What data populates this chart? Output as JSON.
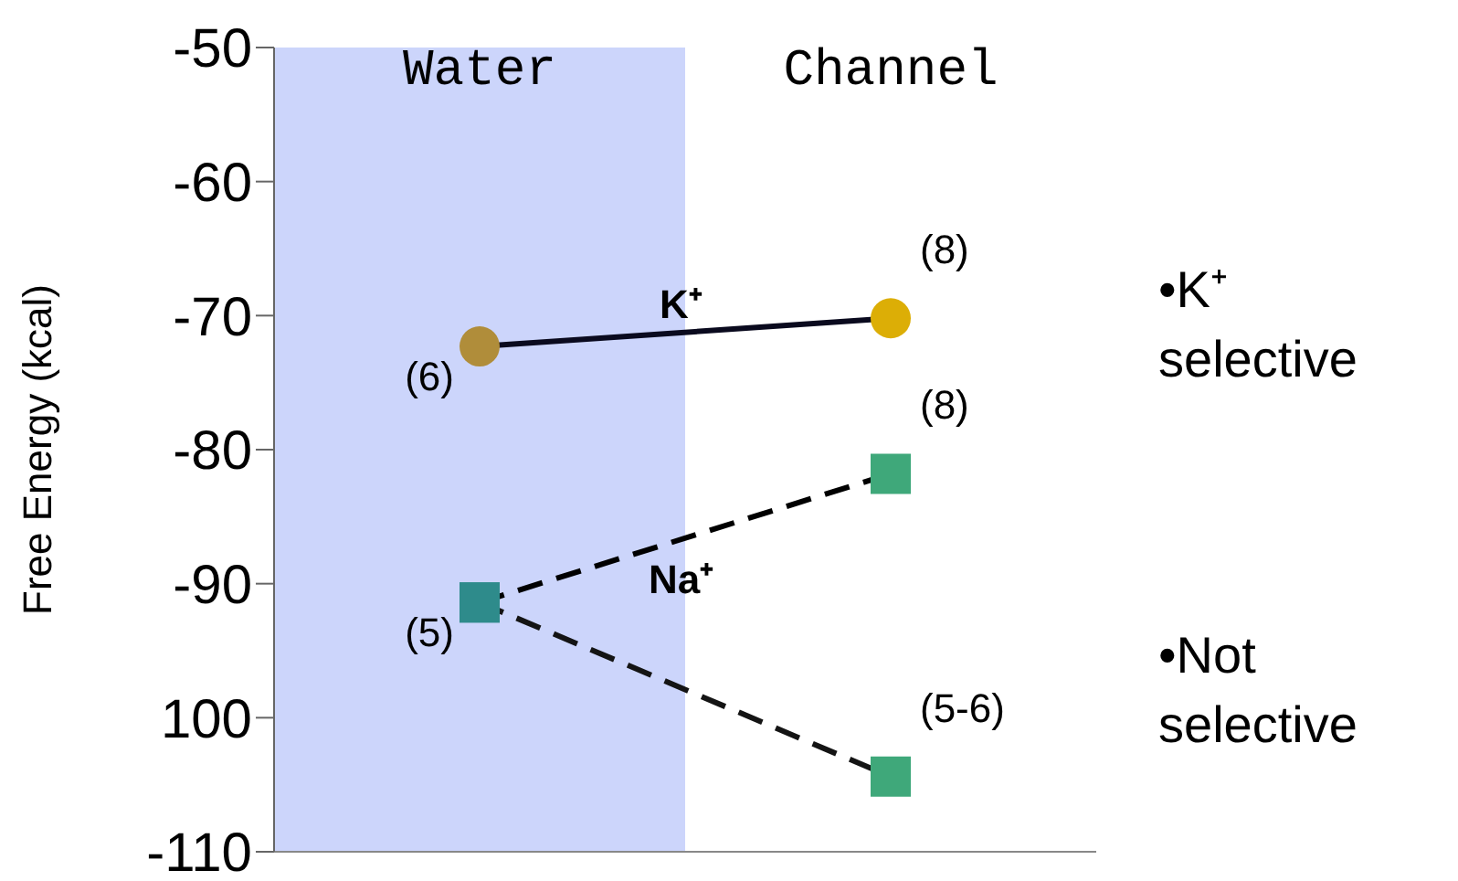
{
  "chart_data": {
    "type": "line",
    "ylabel": "Free Energy (kcal)",
    "categories": [
      "Water",
      "Channel"
    ],
    "series": [
      {
        "name": "K⁺",
        "color": "#0a0a1e",
        "colors": [
          "#b08d3a",
          "#dcae06"
        ],
        "marker": "circle",
        "line_style": "solid",
        "values": [
          -72.3,
          -70.2
        ]
      },
      {
        "name": "Na⁺",
        "color": "#000000",
        "colors": [
          "#2e8b8b",
          "#3fa87a"
        ],
        "marker": "square",
        "line_style": "dashed",
        "values": [
          -91.4,
          -81.8
        ]
      },
      {
        "color": "#141414",
        "colors": [
          "#2e8b8b",
          "#3fa87a"
        ],
        "marker": "square",
        "line_style": "dashed",
        "values": [
          -91.4,
          -104.4
        ]
      }
    ],
    "ylim": [
      -110,
      -50
    ],
    "yticks": [
      -110,
      {
        "value": -100,
        "label": "100"
      },
      -90,
      -80,
      -70,
      -60,
      -50
    ],
    "grid": false,
    "legend": false,
    "bands": [
      {
        "axis": "x",
        "from": "Water",
        "to": "Water",
        "color": "#ccd5fb"
      }
    ],
    "annotations": [
      {
        "text": "(6)",
        "x": "Water",
        "y": -72.3
      },
      {
        "text": "(8)",
        "x": "Channel",
        "y": -70.2
      },
      {
        "text": "(5)",
        "x": "Water",
        "y": -91.4
      },
      {
        "text": "(8)",
        "x": "Channel",
        "y": -81.8
      },
      {
        "text": "(5-6)",
        "x": "Channel",
        "y": -104.4
      },
      "•K⁺ selective",
      "•Not selective"
    ]
  }
}
